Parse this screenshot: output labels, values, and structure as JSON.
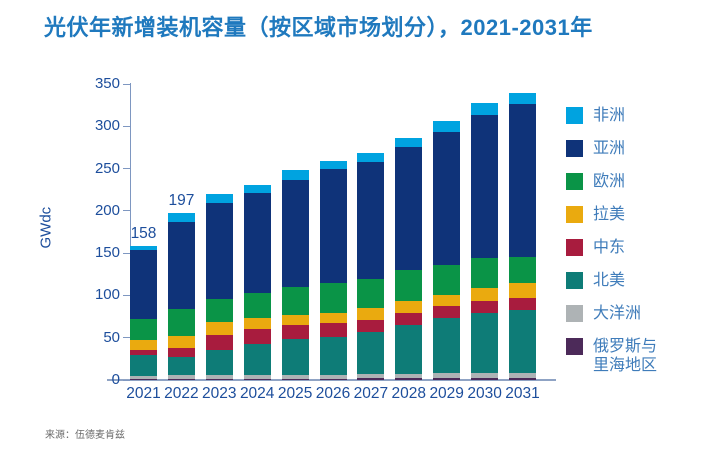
{
  "source": "来源：伍德麦肯兹",
  "chart_data": {
    "type": "bar",
    "stacked": true,
    "title": "光伏年新增装机容量（按区域市场划分），2021-2031年",
    "ylabel": "GWdc",
    "xlabel": "",
    "ylim": [
      0,
      350
    ],
    "yticks": [
      0,
      50,
      100,
      150,
      200,
      250,
      300,
      350
    ],
    "grid": false,
    "legend_position": "right",
    "legend": [
      "非洲",
      "亚洲",
      "欧洲",
      "拉美",
      "中东",
      "北美",
      "大洋洲",
      "俄罗斯与里海地区"
    ],
    "categories": [
      "2021",
      "2022",
      "2023",
      "2024",
      "2025",
      "2026",
      "2027",
      "2028",
      "2029",
      "2030",
      "2031"
    ],
    "series": [
      {
        "name": "俄罗斯与里海地区",
        "color": "#4C2A59",
        "values": [
          1,
          1,
          1,
          1,
          1,
          1,
          2,
          2,
          2,
          2,
          2
        ]
      },
      {
        "name": "大洋洲",
        "color": "#AEB3B5",
        "values": [
          4,
          5,
          5,
          5,
          5,
          5,
          5,
          5,
          6,
          6,
          6
        ]
      },
      {
        "name": "北美",
        "color": "#0E7C77",
        "values": [
          25,
          21,
          30,
          36,
          43,
          45,
          50,
          58,
          65,
          71,
          75
        ]
      },
      {
        "name": "中东",
        "color": "#A81C3E",
        "values": [
          5,
          11,
          17,
          18,
          16,
          16,
          14,
          14,
          14,
          14,
          14
        ]
      },
      {
        "name": "拉美",
        "color": "#EAAA0F",
        "values": [
          12,
          14,
          15,
          13,
          12,
          12,
          14,
          14,
          14,
          16,
          18
        ]
      },
      {
        "name": "欧洲",
        "color": "#0A9447",
        "values": [
          25,
          32,
          28,
          30,
          33,
          36,
          34,
          37,
          35,
          35,
          31
        ]
      },
      {
        "name": "亚洲",
        "color": "#0F3379",
        "values": [
          82,
          103,
          113,
          118,
          127,
          134,
          139,
          145,
          157,
          169,
          180
        ]
      },
      {
        "name": "非洲",
        "color": "#00A3E0",
        "values": [
          4,
          10,
          11,
          10,
          11,
          10,
          10,
          11,
          13,
          14,
          13
        ]
      }
    ],
    "totals": [
      158,
      197,
      220,
      231,
      248,
      259,
      268,
      286,
      306,
      327,
      339
    ],
    "data_labels": {
      "2021": "158",
      "2022": "197"
    }
  }
}
